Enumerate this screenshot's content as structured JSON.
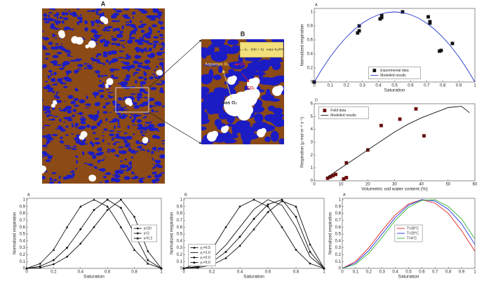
{
  "figure": {
    "panel_a": "A",
    "panel_b": "B",
    "aqueous": "Aqueous O₂",
    "co2_arrow": "CO₂",
    "co2_bubble": "CO₂",
    "gas": "Gas O₂",
    "equation": "kᵣ = kₛ · S/(K + S) · exp(−Eₐ/RT)"
  },
  "chart_data": [
    {
      "type": "line",
      "panel": "A",
      "xlabel": "Saturation",
      "ylabel": "Normalized respiration",
      "xlim": [
        0,
        1
      ],
      "xticks": [
        0,
        0.1,
        0.2,
        0.3,
        0.4,
        0.5,
        0.6,
        0.7,
        0.8,
        0.9,
        1
      ],
      "ylim": [
        0,
        1.05
      ],
      "yticks": [
        0,
        0.2,
        0.4,
        0.6,
        0.8,
        1
      ],
      "legend": "lower center",
      "series": [
        {
          "name": "Experimental data",
          "color": "#111111",
          "mode": "markers",
          "marker": "square",
          "x": [
            0,
            0.27,
            0.28,
            0.28,
            0.41,
            0.42,
            0.42,
            0.55,
            0.71,
            0.72,
            0.72,
            0.78,
            0.79,
            0.86
          ],
          "values": [
            0,
            0.7,
            0.73,
            0.8,
            0.9,
            0.95,
            0.92,
            1.0,
            0.93,
            0.86,
            0.84,
            0.44,
            0.45,
            0.55
          ]
        },
        {
          "name": "Modelled results",
          "color": "#2233cc",
          "mode": "line",
          "x": [
            0,
            0.05,
            0.1,
            0.15,
            0.2,
            0.25,
            0.3,
            0.35,
            0.4,
            0.45,
            0.5,
            0.55,
            0.6,
            0.65,
            0.7,
            0.75,
            0.8,
            0.85,
            0.9,
            0.95,
            1
          ],
          "values": [
            0,
            0.19,
            0.36,
            0.51,
            0.64,
            0.75,
            0.84,
            0.91,
            0.96,
            0.99,
            1,
            0.99,
            0.96,
            0.91,
            0.84,
            0.75,
            0.64,
            0.51,
            0.36,
            0.19,
            0
          ]
        }
      ]
    },
    {
      "type": "line",
      "panel": "D",
      "xlabel": "Volumetric soil water content (%)",
      "ylabel": "Respiration (μ mol m⁻² s⁻¹)",
      "xlim": [
        0,
        60
      ],
      "xticks": [
        0,
        10,
        20,
        30,
        40,
        50,
        60
      ],
      "ylim": [
        0,
        6
      ],
      "yticks": [
        0,
        1,
        2,
        3,
        4,
        5,
        6
      ],
      "legend": "upper left",
      "series": [
        {
          "name": "Field data",
          "color": "#6b0a0a",
          "mode": "markers",
          "marker": "square",
          "x": [
            5,
            6,
            7,
            8,
            11,
            12,
            12,
            20,
            25,
            32,
            38,
            41
          ],
          "values": [
            0.2,
            0.3,
            0.4,
            0.5,
            0.15,
            1.4,
            0.25,
            2.4,
            4.3,
            4.8,
            5.6,
            3.5
          ]
        },
        {
          "name": "Modelled results",
          "color": "#111111",
          "mode": "line",
          "x": [
            5,
            10,
            15,
            20,
            25,
            30,
            35,
            40,
            45,
            50,
            55,
            58
          ],
          "values": [
            0.3,
            1.0,
            1.7,
            2.4,
            3.1,
            3.8,
            4.4,
            4.9,
            5.3,
            5.7,
            5.8,
            5.3
          ]
        }
      ]
    },
    {
      "type": "line",
      "panel": "A",
      "xlabel": "Saturation",
      "ylabel": "Normalized respiration",
      "xlim": [
        0,
        1
      ],
      "xticks": [
        0,
        0.2,
        0.4,
        0.6,
        0.8,
        1
      ],
      "ylim": [
        0,
        1.02
      ],
      "yticks": [
        0,
        0.1,
        0.2,
        0.3,
        0.4,
        0.5,
        0.6,
        0.7,
        0.8,
        0.9,
        1
      ],
      "legend": "center right",
      "series": [
        {
          "name": "γ=20",
          "color": "#111111",
          "mode": "line+markers",
          "marker": "circle",
          "x": [
            0,
            0.1,
            0.2,
            0.3,
            0.4,
            0.5,
            0.6,
            0.7,
            0.8,
            0.9,
            1
          ],
          "values": [
            0,
            0.01,
            0.06,
            0.17,
            0.36,
            0.6,
            0.85,
            1,
            0.75,
            0.25,
            0
          ]
        },
        {
          "name": "γ=2",
          "color": "#111111",
          "mode": "line+markers",
          "marker": "diamond",
          "x": [
            0,
            0.1,
            0.2,
            0.3,
            0.4,
            0.5,
            0.6,
            0.7,
            0.8,
            0.9,
            1
          ],
          "values": [
            0,
            0.03,
            0.12,
            0.3,
            0.57,
            0.85,
            1,
            0.88,
            0.5,
            0.12,
            0
          ]
        },
        {
          "name": "γ=0.2",
          "color": "#111111",
          "mode": "line+markers",
          "marker": "triangle",
          "x": [
            0,
            0.1,
            0.2,
            0.3,
            0.4,
            0.5,
            0.6,
            0.7,
            0.8,
            0.9,
            1
          ],
          "values": [
            0,
            0.07,
            0.27,
            0.6,
            0.9,
            1,
            0.9,
            0.6,
            0.27,
            0.07,
            0
          ]
        }
      ]
    },
    {
      "type": "line",
      "panel": "B",
      "xlabel": "Saturation",
      "ylabel": "Normalized respiration",
      "xlim": [
        0,
        1
      ],
      "xticks": [
        0,
        0.2,
        0.4,
        0.6,
        0.8,
        1
      ],
      "ylim": [
        0,
        1.02
      ],
      "yticks": [
        0,
        0.1,
        0.2,
        0.3,
        0.4,
        0.5,
        0.6,
        0.7,
        0.8,
        0.9,
        1
      ],
      "legend": "lower left",
      "series": [
        {
          "name": "γ₂=0.5",
          "color": "#111111",
          "mode": "line+markers",
          "marker": "circle",
          "x": [
            0,
            0.1,
            0.2,
            0.3,
            0.4,
            0.5,
            0.6,
            0.7,
            0.8,
            0.9,
            1
          ],
          "values": [
            0,
            0.07,
            0.27,
            0.6,
            0.9,
            1,
            0.9,
            0.6,
            0.27,
            0.07,
            0
          ]
        },
        {
          "name": "γ₂=1.0",
          "color": "#111111",
          "mode": "line",
          "marker": "none",
          "x": [
            0,
            0.1,
            0.2,
            0.3,
            0.4,
            0.5,
            0.6,
            0.7,
            0.8,
            0.9,
            1
          ],
          "values": [
            0,
            0.03,
            0.14,
            0.34,
            0.6,
            0.86,
            1,
            0.92,
            0.6,
            0.17,
            0
          ]
        },
        {
          "name": "γ₂=2.0",
          "color": "#111111",
          "mode": "line+markers",
          "marker": "diamond",
          "x": [
            0,
            0.1,
            0.2,
            0.3,
            0.4,
            0.5,
            0.6,
            0.7,
            0.8,
            0.9,
            1
          ],
          "values": [
            0,
            0.02,
            0.09,
            0.24,
            0.46,
            0.72,
            0.93,
            1,
            0.75,
            0.24,
            0
          ]
        },
        {
          "name": "γ₂=3.0",
          "color": "#111111",
          "mode": "line+markers",
          "marker": "triangle",
          "x": [
            0,
            0.1,
            0.2,
            0.3,
            0.4,
            0.5,
            0.6,
            0.7,
            0.8,
            0.9,
            1
          ],
          "values": [
            0,
            0.01,
            0.05,
            0.15,
            0.33,
            0.57,
            0.82,
            0.98,
            0.9,
            0.35,
            0
          ]
        }
      ]
    },
    {
      "type": "line",
      "panel": "A",
      "xlabel": "Saturation",
      "ylabel": "Normalized respiration",
      "xlim": [
        0,
        1
      ],
      "xticks": [
        0,
        0.1,
        0.2,
        0.3,
        0.4,
        0.5,
        0.6,
        0.7,
        0.8,
        0.9,
        1
      ],
      "ylim": [
        0,
        1.02
      ],
      "yticks": [
        0,
        0.1,
        0.2,
        0.3,
        0.4,
        0.5,
        0.6,
        0.7,
        0.8,
        0.9,
        1
      ],
      "legend": "center",
      "series": [
        {
          "name": "T=30°C",
          "color": "#e02020",
          "mode": "line",
          "x": [
            0,
            0.1,
            0.2,
            0.3,
            0.4,
            0.5,
            0.6,
            0.7,
            0.8,
            0.9,
            1
          ],
          "values": [
            0,
            0.1,
            0.3,
            0.55,
            0.78,
            0.94,
            1,
            0.95,
            0.8,
            0.55,
            0.25
          ]
        },
        {
          "name": "T=20°C",
          "color": "#2030e0",
          "mode": "line",
          "x": [
            0,
            0.1,
            0.2,
            0.3,
            0.4,
            0.5,
            0.6,
            0.7,
            0.8,
            0.9,
            1
          ],
          "values": [
            0,
            0.08,
            0.26,
            0.5,
            0.74,
            0.92,
            1,
            0.98,
            0.86,
            0.65,
            0.35
          ]
        },
        {
          "name": "T=4°C",
          "color": "#30b030",
          "mode": "line",
          "x": [
            0,
            0.1,
            0.2,
            0.3,
            0.4,
            0.5,
            0.6,
            0.7,
            0.8,
            0.9,
            1
          ],
          "values": [
            0,
            0.06,
            0.22,
            0.45,
            0.7,
            0.89,
            0.99,
            1,
            0.9,
            0.72,
            0.43
          ]
        }
      ]
    }
  ]
}
